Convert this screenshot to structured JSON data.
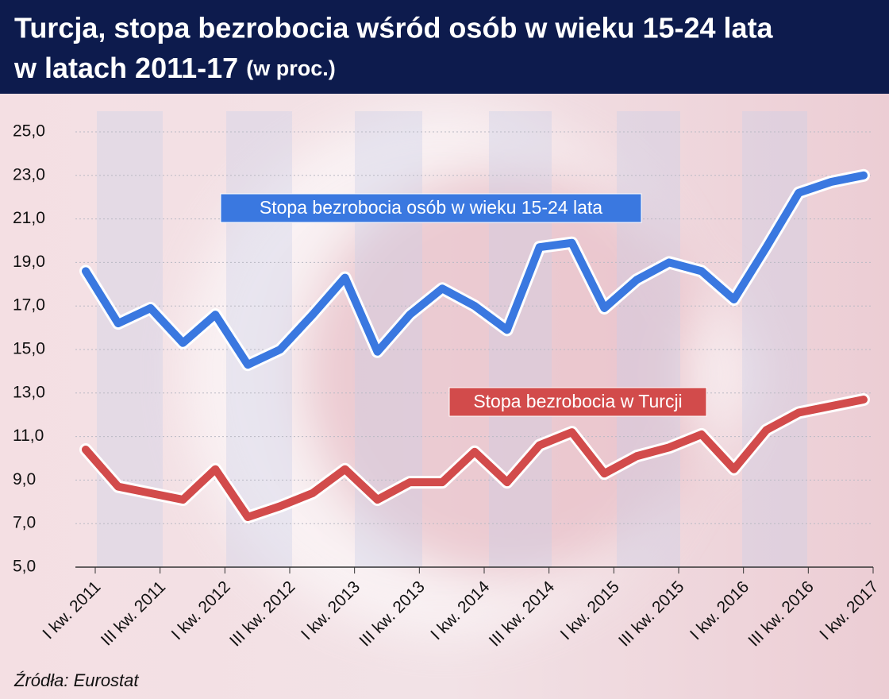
{
  "chart_data": {
    "type": "line",
    "title": "Turcja, stopa bezrobocia wśród osób w wieku 15-24 lata",
    "title_line2": "w  latach 2011-17",
    "title_unit": "(w proc.)",
    "source": "Źródła: Eurostat",
    "categories": [
      "I kw. 2011",
      null,
      "III kw. 2011",
      null,
      "I kw. 2012",
      null,
      "III kw. 2012",
      null,
      "I kw. 2013",
      null,
      "III kw. 2013",
      null,
      "I kw. 2014",
      null,
      "III kw. 2014",
      null,
      "I kw. 2015",
      null,
      "III kw. 2015",
      null,
      "I kw. 2016",
      null,
      "III kw. 2016",
      null,
      "I kw. 2017"
    ],
    "series": [
      {
        "name": "Stopa bezrobocia osób w wieku 15-24 lata",
        "color": "#3a78e0",
        "values": [
          18.6,
          16.2,
          16.9,
          15.3,
          16.6,
          14.3,
          15.0,
          16.6,
          18.3,
          14.9,
          16.6,
          17.8,
          17.0,
          15.9,
          19.7,
          19.9,
          16.9,
          18.2,
          19.0,
          18.6,
          17.3,
          19.7,
          22.2,
          22.7,
          23.0
        ]
      },
      {
        "name": "Stopa bezrobocia w Turcji",
        "color": "#d24b4b",
        "values": [
          10.4,
          8.7,
          8.4,
          8.1,
          9.5,
          7.3,
          7.8,
          8.4,
          9.5,
          8.1,
          8.9,
          8.9,
          10.3,
          8.9,
          10.6,
          11.2,
          9.3,
          10.1,
          10.5,
          11.1,
          9.5,
          11.3,
          12.1,
          12.4,
          12.7
        ]
      }
    ],
    "ylim": [
      5,
      25
    ],
    "yticks": [
      {
        "value": 5,
        "label": "5,0"
      },
      {
        "value": 7,
        "label": "7,0"
      },
      {
        "value": 9,
        "label": "9,0"
      },
      {
        "value": 11,
        "label": "11,0"
      },
      {
        "value": 13,
        "label": "13,0"
      },
      {
        "value": 15,
        "label": "15,0"
      },
      {
        "value": 17,
        "label": "17,0"
      },
      {
        "value": 19,
        "label": "19,0"
      },
      {
        "value": 21,
        "label": "21,0"
      },
      {
        "value": 23,
        "label": "23,0"
      },
      {
        "value": 25,
        "label": "25,0"
      }
    ],
    "grid": true
  }
}
